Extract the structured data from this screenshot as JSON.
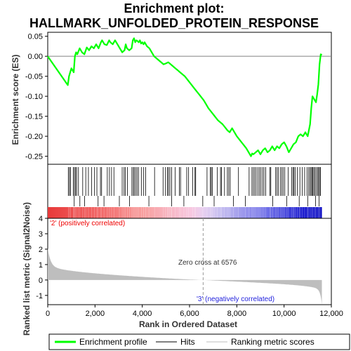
{
  "chart_data": {
    "type": "line",
    "title_line1": "Enrichment plot:",
    "title_line2": "HALLMARK_UNFOLDED_PROTEIN_RESPONSE",
    "ylabel_top": "Enrichment score (ES)",
    "ylabel_bottom": "Ranked list metric (Signal2Noise)",
    "xlabel": "Rank in Ordered Dataset",
    "xlim": [
      0,
      12000
    ],
    "x_ticks": [
      0,
      2000,
      4000,
      6000,
      8000,
      10000,
      12000
    ],
    "x_tick_labels": [
      "0",
      "2,000",
      "4,000",
      "6,000",
      "8,000",
      "10,000",
      "12,000"
    ],
    "es_ylim": [
      -0.27,
      0.06
    ],
    "es_ticks": [
      0.05,
      0.0,
      -0.05,
      -0.1,
      -0.15,
      -0.2,
      -0.25
    ],
    "es_tick_labels": [
      "0.05",
      "0.00",
      "-0.05",
      "-0.10",
      "-0.15",
      "-0.20",
      "-0.25"
    ],
    "metric_ylim": [
      -1.6,
      4
    ],
    "metric_ticks": [
      4,
      3,
      2,
      1,
      0,
      -1
    ],
    "metric_tick_labels": [
      "4",
      "3",
      "2",
      "1",
      "0",
      "-1"
    ],
    "n_genes": 11600,
    "zero_cross": 6576,
    "zero_cross_label": "Zero cross at 6576",
    "pos_label": "'2' (positively correlated)",
    "neg_label": "'3' (negatively correlated)",
    "es_profile": {
      "x": [
        0,
        850,
        900,
        950,
        1000,
        1100,
        1150,
        1200,
        1250,
        1350,
        1450,
        1550,
        1650,
        1750,
        1850,
        1950,
        2050,
        2150,
        2250,
        2300,
        2400,
        2500,
        2600,
        2650,
        2750,
        2850,
        2950,
        3050,
        3150,
        3250,
        3300,
        3350,
        3450,
        3550,
        3600,
        3650,
        3700,
        3750,
        3800,
        3850,
        3900,
        3950,
        4000,
        4050,
        4100,
        4200,
        4300,
        4500,
        4700,
        4900,
        5000,
        5100,
        5200,
        5300,
        5400,
        5500,
        5600,
        5800,
        6000,
        6200,
        6400,
        6600,
        6800,
        7000,
        7200,
        7400,
        7600,
        7700,
        7800,
        8000,
        8200,
        8400,
        8500,
        8600,
        8650,
        8700,
        8800,
        8900,
        9000,
        9100,
        9200,
        9300,
        9400,
        9500,
        9600,
        9700,
        9800,
        9900,
        10000,
        10100,
        10200,
        10300,
        10400,
        10500,
        10600,
        10700,
        10800,
        10900,
        11000,
        11050,
        11100,
        11150,
        11200,
        11250,
        11300,
        11350,
        11400,
        11450,
        11500,
        11550,
        11600
      ],
      "y": [
        0.0,
        -0.072,
        -0.05,
        -0.04,
        -0.03,
        -0.04,
        0.0,
        0.01,
        0.005,
        0.02,
        0.01,
        0.005,
        0.022,
        0.015,
        0.025,
        0.02,
        0.03,
        0.02,
        0.035,
        0.04,
        0.03,
        0.028,
        0.04,
        0.035,
        0.03,
        0.04,
        0.03,
        0.02,
        0.01,
        0.015,
        0.03,
        0.02,
        0.015,
        0.02,
        0.04,
        0.045,
        0.035,
        0.04,
        0.038,
        0.035,
        0.04,
        0.032,
        0.035,
        0.03,
        0.035,
        0.025,
        0.02,
        0.0,
        -0.01,
        -0.02,
        -0.018,
        -0.015,
        -0.02,
        -0.025,
        -0.03,
        -0.035,
        -0.04,
        -0.05,
        -0.065,
        -0.08,
        -0.095,
        -0.11,
        -0.13,
        -0.145,
        -0.16,
        -0.17,
        -0.185,
        -0.19,
        -0.18,
        -0.2,
        -0.215,
        -0.23,
        -0.24,
        -0.25,
        -0.243,
        -0.245,
        -0.24,
        -0.235,
        -0.245,
        -0.235,
        -0.23,
        -0.24,
        -0.235,
        -0.225,
        -0.235,
        -0.225,
        -0.23,
        -0.22,
        -0.215,
        -0.225,
        -0.24,
        -0.23,
        -0.22,
        -0.215,
        -0.2,
        -0.195,
        -0.2,
        -0.19,
        -0.2,
        -0.185,
        -0.17,
        -0.13,
        -0.1,
        -0.105,
        -0.11,
        -0.115,
        -0.095,
        -0.07,
        -0.02,
        0.005,
        0.003
      ]
    },
    "hits_band1": [
      870,
      920,
      960,
      1080,
      1130,
      1180,
      1220,
      1300,
      1480,
      1610,
      1720,
      1860,
      1980,
      2080,
      2230,
      2280,
      2520,
      2610,
      2700,
      2800,
      3150,
      3230,
      3280,
      3370,
      3560,
      3620,
      3660,
      3720,
      3780,
      3840,
      3960,
      4060,
      4140,
      4520,
      4880,
      4980,
      5060,
      5110,
      5170,
      5240,
      5390,
      5570,
      5620,
      5880,
      5960,
      6130,
      6230,
      6260,
      6740,
      6880,
      6920,
      6960,
      7170,
      7310,
      7350,
      7480,
      7600,
      7660,
      7720,
      8070,
      8520,
      8640,
      8700,
      8760,
      8820,
      8890,
      8960,
      9020,
      9090,
      9150,
      9220,
      9400,
      9440,
      9640,
      9700,
      9760,
      9840,
      9900,
      9960,
      10030,
      10170,
      10320,
      10380,
      10420,
      10470,
      10560,
      10670,
      10770,
      10870,
      10970,
      11040,
      11090,
      11140,
      11180,
      11220,
      11260,
      11310,
      11360,
      11420,
      11460,
      11500,
      11540
    ],
    "hits_band2": [
      1120,
      1360,
      1560,
      2130,
      2380,
      3030,
      3460,
      4280,
      5240,
      5760,
      6560,
      7040,
      7860,
      8360,
      9520,
      10110,
      10640,
      11000,
      11330,
      11480
    ],
    "legend": [
      "Enrichment profile",
      "Hits",
      "Ranking metric scores"
    ],
    "colors": {
      "es_line": "#00ff00",
      "hit": "#000000",
      "metric_fill": "#bebebe",
      "pos_text": "#ee0000",
      "neg_text": "#2222dd",
      "heat_pos": "#ff0000",
      "heat_neg": "#0000ff",
      "zero_line": "#808080"
    }
  }
}
